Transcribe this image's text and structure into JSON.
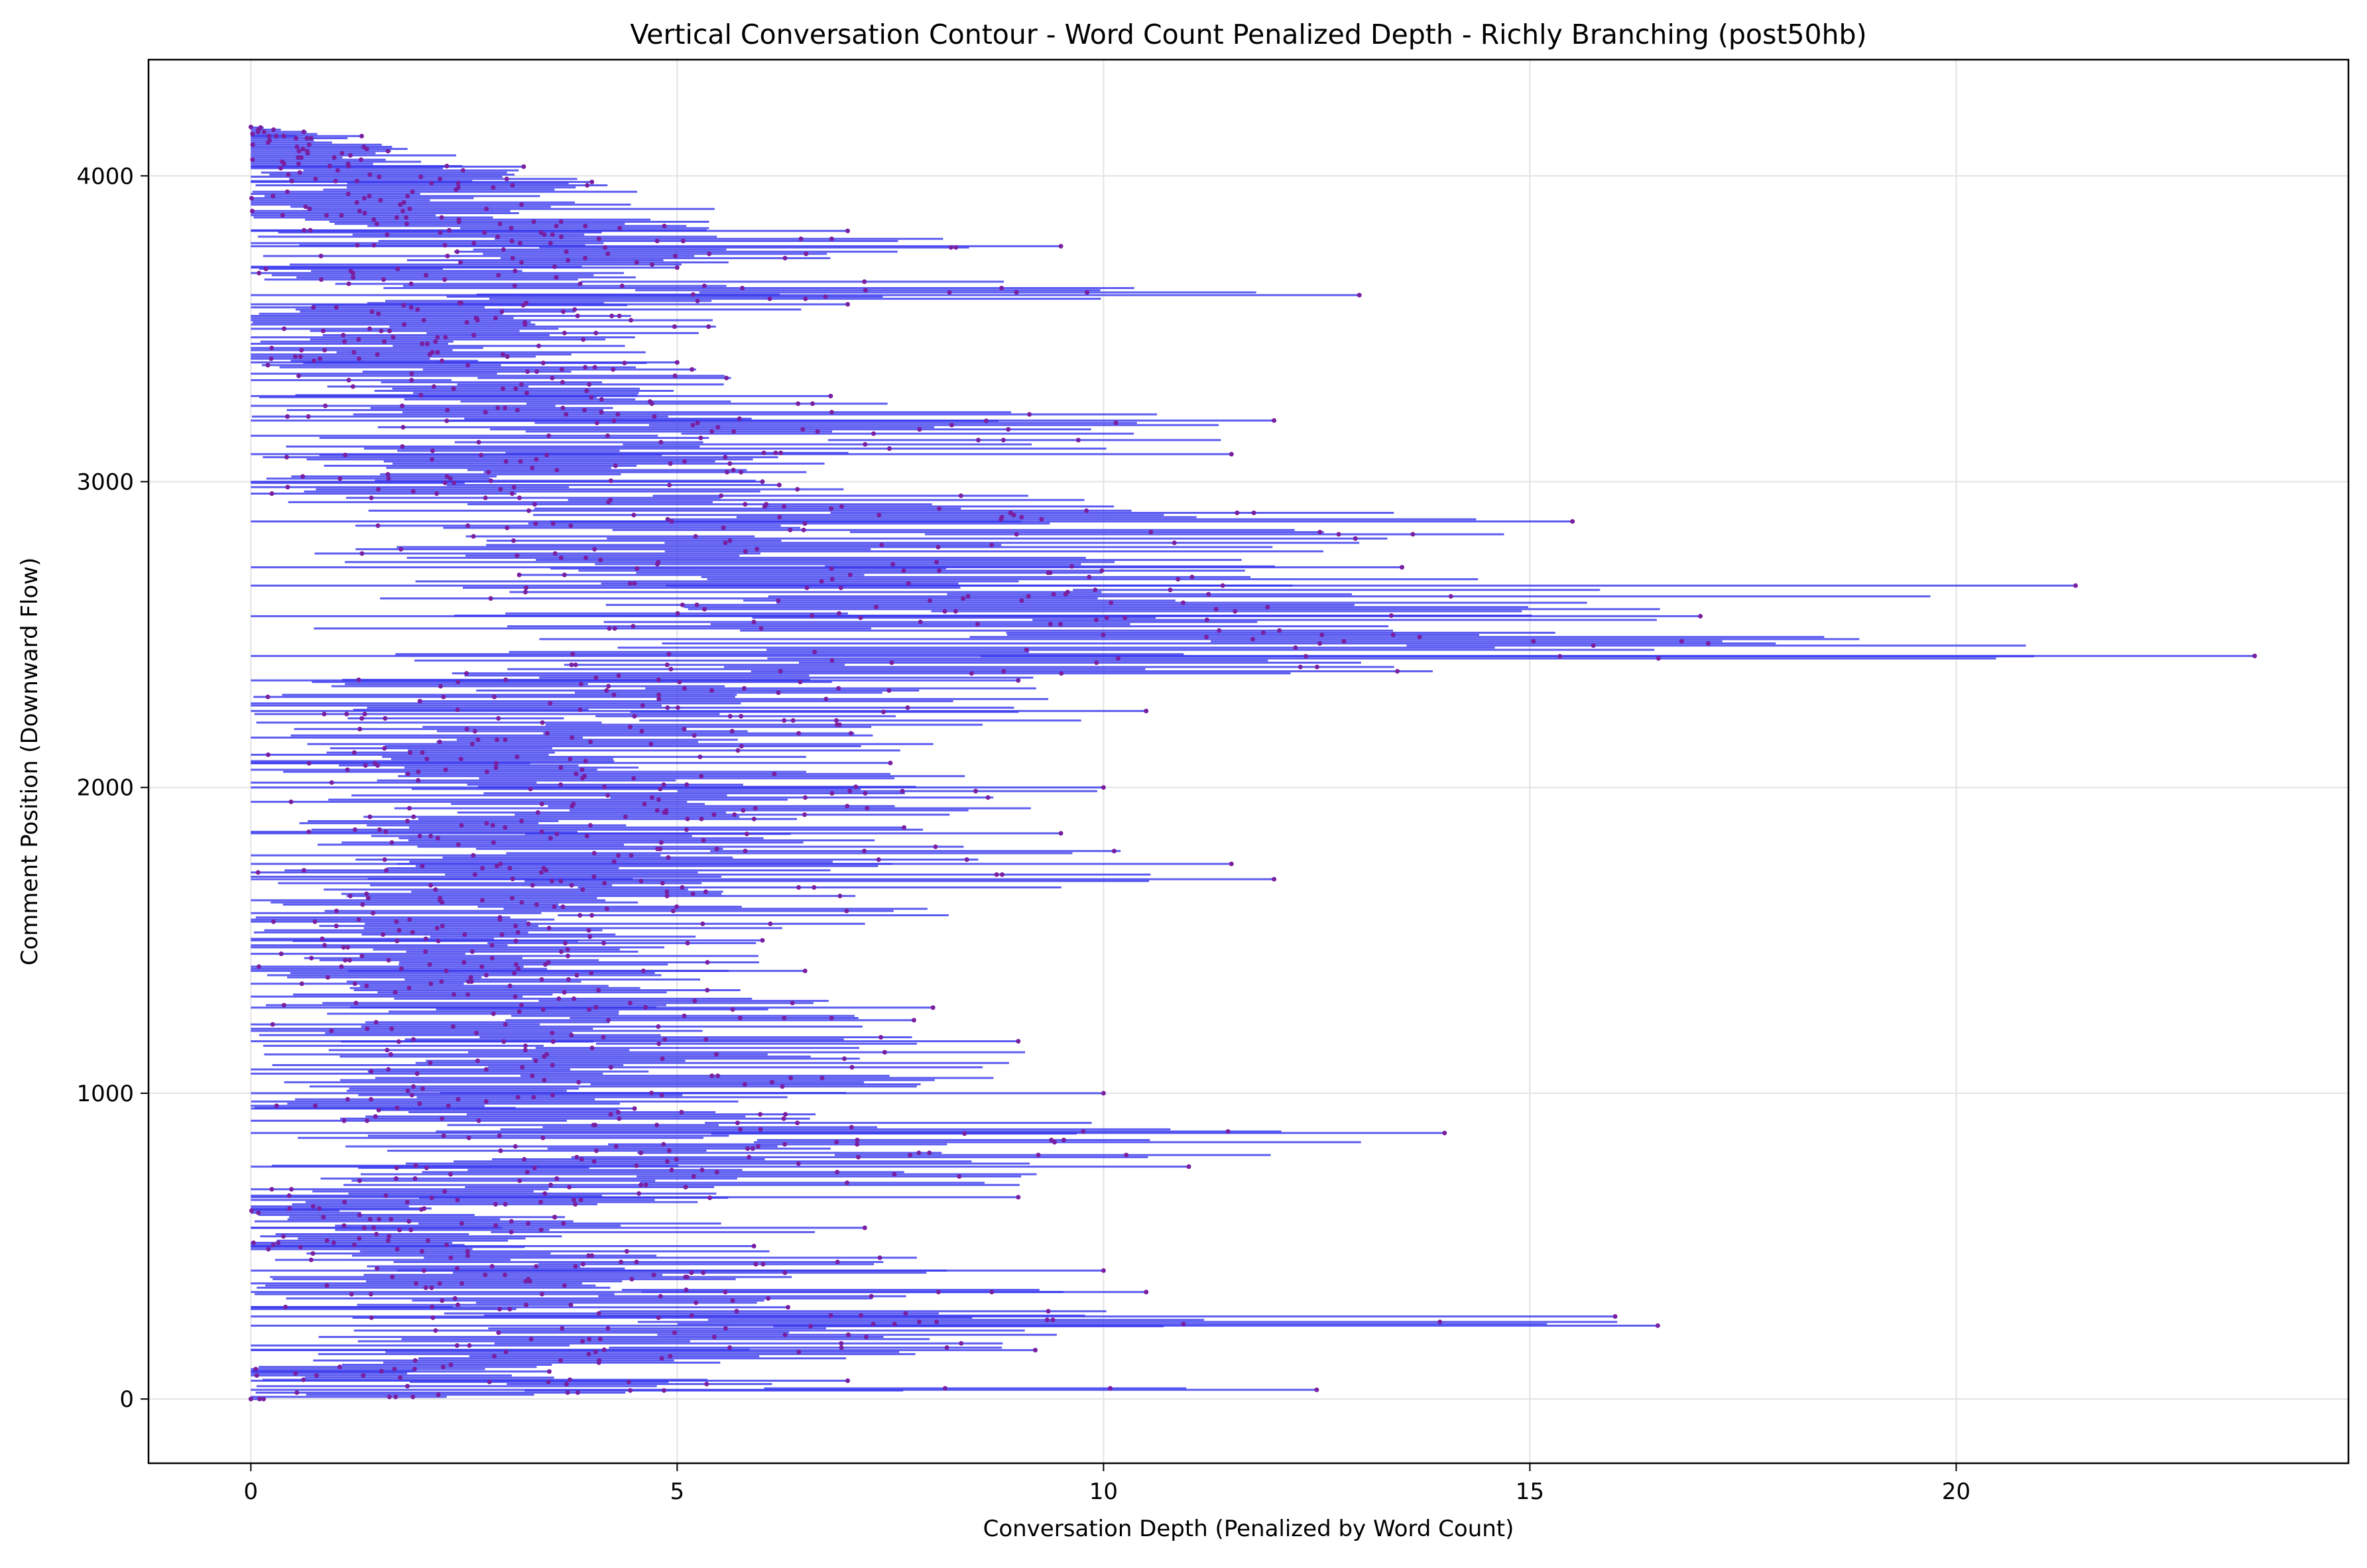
{
  "chart_data": {
    "type": "line",
    "title": "Vertical Conversation Contour - Word Count Penalized Depth - Richly Branching (post50hb)",
    "xlabel": "Conversation Depth (Penalized by Word Count)",
    "ylabel": "Comment Position (Downward Flow)",
    "xlim": [
      -1.2,
      24.6
    ],
    "ylim": [
      -210,
      4380
    ],
    "xticks": [
      0,
      5,
      10,
      15,
      20
    ],
    "yticks": [
      0,
      1000,
      2000,
      3000,
      4000
    ],
    "xtick_labels": [
      "0",
      "5",
      "10",
      "15",
      "20"
    ],
    "ytick_labels": [
      "0",
      "1000",
      "2000",
      "3000",
      "4000"
    ],
    "grid": true,
    "legend": "none",
    "colors": {
      "line": "#3333ee",
      "point": "#7a1fa0",
      "grid": "#e3e3e3"
    },
    "series": [
      {
        "style": "horizontal depth segments per comment position",
        "points": [
          [
            0,
            0
          ],
          [
            12.5,
            30
          ],
          [
            7.0,
            60
          ],
          [
            3.5,
            90
          ],
          [
            9.2,
            160
          ],
          [
            16.5,
            240
          ],
          [
            16.0,
            270
          ],
          [
            6.3,
            300
          ],
          [
            10.5,
            350
          ],
          [
            10.0,
            420
          ],
          [
            5.9,
            500
          ],
          [
            7.2,
            560
          ],
          [
            2.0,
            620
          ],
          [
            9.0,
            660
          ],
          [
            11.0,
            760
          ],
          [
            14.0,
            870
          ],
          [
            4.5,
            950
          ],
          [
            10.0,
            1000
          ],
          [
            9.0,
            1170
          ],
          [
            8.0,
            1280
          ],
          [
            6.5,
            1400
          ],
          [
            6.0,
            1500
          ],
          [
            12.0,
            1700
          ],
          [
            11.5,
            1750
          ],
          [
            9.5,
            1850
          ],
          [
            10.0,
            2000
          ],
          [
            7.5,
            2080
          ],
          [
            10.5,
            2250
          ],
          [
            9.0,
            2350
          ],
          [
            23.5,
            2430
          ],
          [
            17.0,
            2560
          ],
          [
            21.4,
            2660
          ],
          [
            13.5,
            2720
          ],
          [
            15.5,
            2870
          ],
          [
            6.0,
            3000
          ],
          [
            11.5,
            3090
          ],
          [
            12.0,
            3200
          ],
          [
            6.8,
            3280
          ],
          [
            5.0,
            3390
          ],
          [
            7.0,
            3580
          ],
          [
            13.0,
            3610
          ],
          [
            5.0,
            3700
          ],
          [
            9.5,
            3770
          ],
          [
            7.0,
            3820
          ],
          [
            4.0,
            3980
          ],
          [
            3.2,
            4030
          ],
          [
            1.3,
            4130
          ],
          [
            0,
            4160
          ]
        ]
      }
    ]
  }
}
